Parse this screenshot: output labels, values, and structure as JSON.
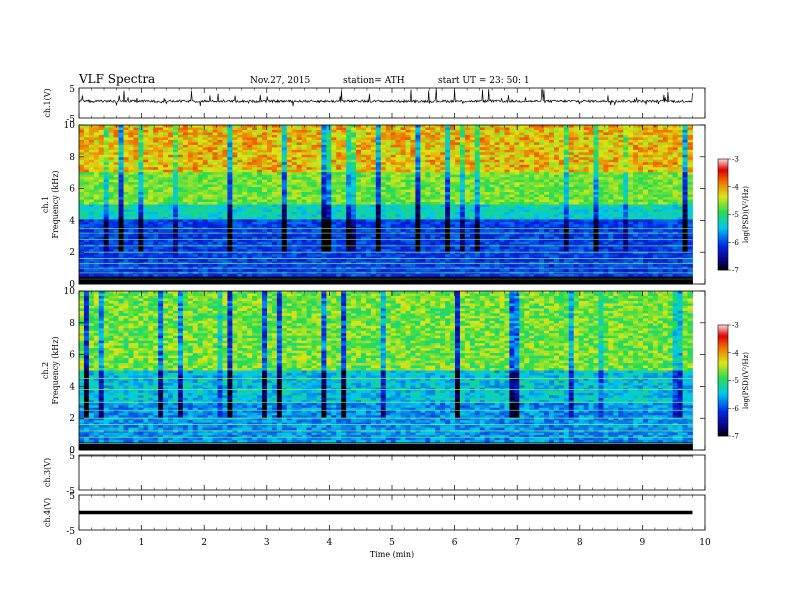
{
  "header": {
    "title": "VLF  Spectra",
    "date": "Nov.27, 2015",
    "station": "station= ATH",
    "start": "start  UT  =    23: 50: 1"
  },
  "chart_data": [
    {
      "type": "line",
      "name": "ch1-waveform",
      "ylabel": "ch.1(V)",
      "ylim": [
        -5,
        5
      ],
      "yticks": [
        "5",
        "-5"
      ],
      "xlim": [
        0,
        10
      ],
      "x_extent_min": [
        0,
        9.8
      ],
      "baseline_volts": 0.6,
      "noise": "heavy impulsive spikes"
    },
    {
      "type": "heatmap",
      "name": "ch1-spectrogram",
      "ylabel": "ch.1\nFrequency  (kHz)",
      "ylabel_top": "ch.1",
      "ylabel_bottom": "Frequency  (kHz)",
      "ylim": [
        0,
        10
      ],
      "yticks": [
        "0",
        "2",
        "4",
        "6",
        "8",
        "10"
      ],
      "xlim": [
        0,
        10
      ],
      "x_extent_min": [
        0,
        9.8
      ],
      "colorbar": {
        "label": "log(PSD)(V²/Hz)",
        "range": [
          -7,
          -3
        ],
        "ticks": [
          "-3",
          "-4",
          "-5",
          "-6",
          "-7"
        ]
      }
    },
    {
      "type": "heatmap",
      "name": "ch2-spectrogram",
      "ylabel_top": "ch.2",
      "ylabel_bottom": "Frequency  (kHz)",
      "ylim": [
        0,
        10
      ],
      "yticks": [
        "0",
        "2",
        "4",
        "6",
        "8",
        "10"
      ],
      "xlim": [
        0,
        10
      ],
      "x_extent_min": [
        0,
        9.8
      ],
      "colorbar": {
        "label": "log(PSD)(V²/Hz)",
        "range": [
          -7,
          -3
        ],
        "ticks": [
          "-3",
          "-4",
          "-5",
          "-6",
          "-7"
        ]
      }
    },
    {
      "type": "line",
      "name": "ch3-waveform",
      "ylabel": "ch.3(V)",
      "ylim": [
        -5,
        5
      ],
      "yticks": [
        "5",
        "-5"
      ],
      "xlim": [
        0,
        10
      ],
      "x_extent_min": [
        0,
        9.8
      ],
      "baseline_volts": 5
    },
    {
      "type": "line",
      "name": "ch4-waveform",
      "ylabel": "ch.4(V)",
      "ylim": [
        -5,
        5
      ],
      "yticks": [
        "5",
        "-5"
      ],
      "xlim": [
        0,
        10
      ],
      "x_extent_min": [
        0,
        9.8
      ],
      "baseline_volts": 0,
      "xlabel": "Time  (min)",
      "xticks": [
        "0",
        "1",
        "2",
        "3",
        "4",
        "5",
        "6",
        "7",
        "8",
        "9",
        "10"
      ]
    }
  ]
}
